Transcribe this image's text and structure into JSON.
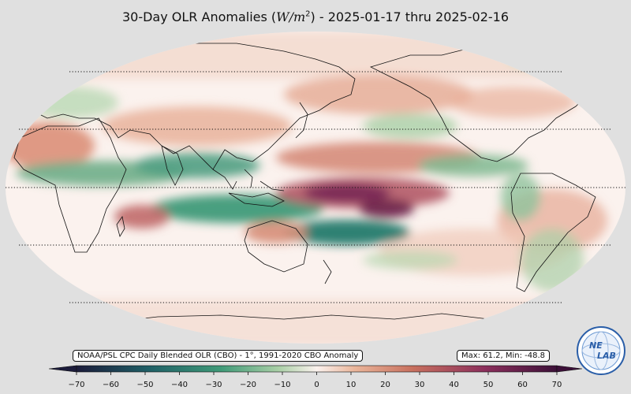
{
  "title": {
    "prefix": "30-Day OLR Anomalies (",
    "unit_base": "W/m",
    "unit_exp": "2",
    "suffix": ") - 2025-01-17 thru 2025-02-16"
  },
  "source_label": "NOAA/PSL CPC Daily Blended OLR (CBO) - 1°, 1991-2020 CBO Anomaly",
  "maxmin_label": "Max: 61.2,  Min: -48.8",
  "colorbar": {
    "ticks": [
      "−70",
      "−60",
      "−50",
      "−40",
      "−30",
      "−20",
      "−10",
      "0",
      "10",
      "20",
      "30",
      "40",
      "50",
      "60",
      "70"
    ],
    "colors": {
      "neg_extreme": "#1b1b3a",
      "neg_strong": "#1f6e6a",
      "neg_mid": "#3f9a78",
      "neg_weak": "#a9cfa6",
      "neutral": "#fbf2ee",
      "pos_weak": "#eab59a",
      "pos_mid": "#c8705e",
      "pos_strong": "#8c2f5c",
      "pos_extreme": "#3c1038"
    }
  },
  "logo": {
    "text_top": "NE",
    "text_bottom": "LAB"
  }
}
